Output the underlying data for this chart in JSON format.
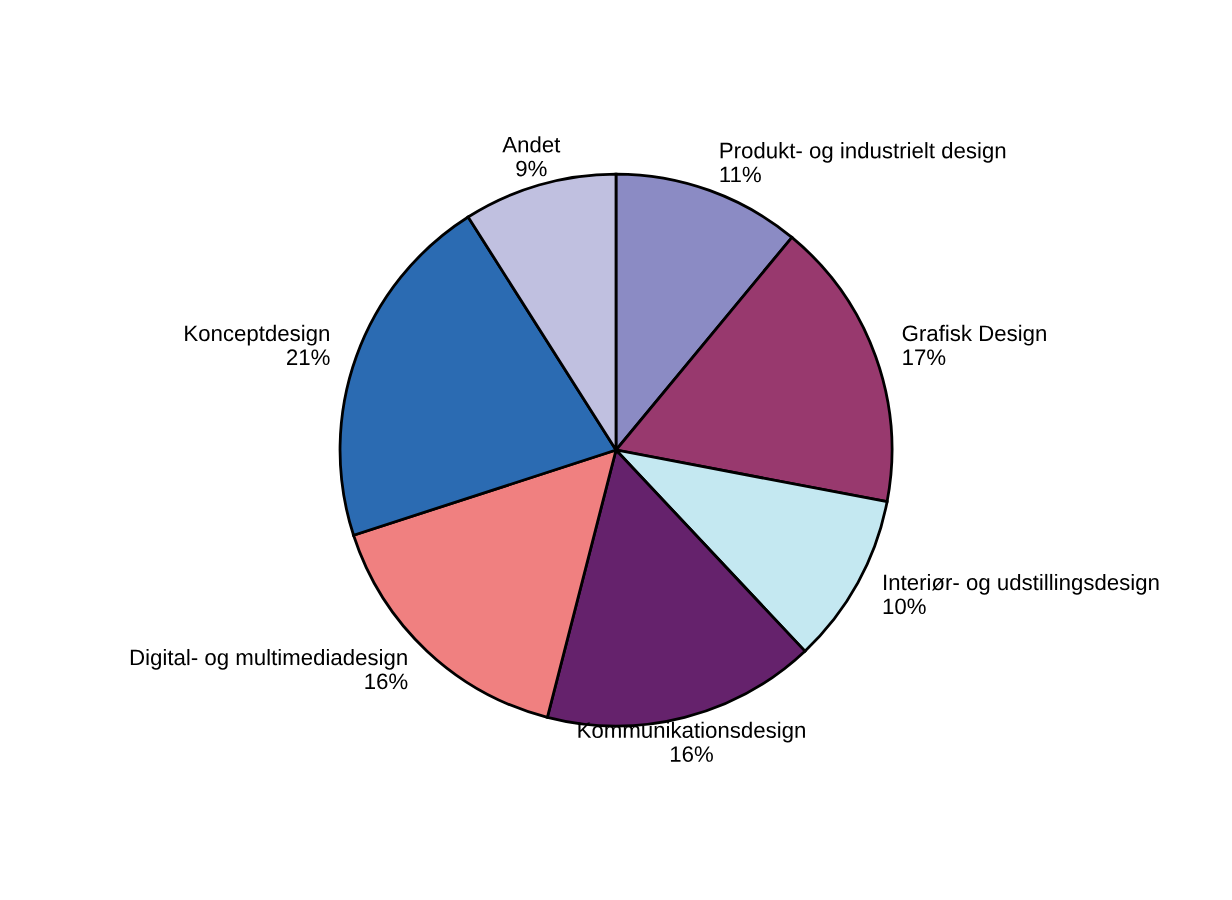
{
  "chart_data": {
    "type": "pie",
    "categories": [
      "Produkt- og industrielt design",
      "Grafisk Design",
      "Interiør- og udstillingsdesign",
      "Kommunikationsdesign",
      "Digital- og multimediadesign",
      "Konceptdesign",
      "Andet"
    ],
    "values": [
      11,
      17,
      10,
      16,
      16,
      21,
      9
    ],
    "value_labels": [
      "11%",
      "17%",
      "10%",
      "16%",
      "16%",
      "21%",
      "9%"
    ],
    "colors": [
      "#8b8bc4",
      "#98396e",
      "#c4e8f1",
      "#65226c",
      "#f08080",
      "#2b6bb2",
      "#c0c0e0"
    ],
    "legend": false
  }
}
